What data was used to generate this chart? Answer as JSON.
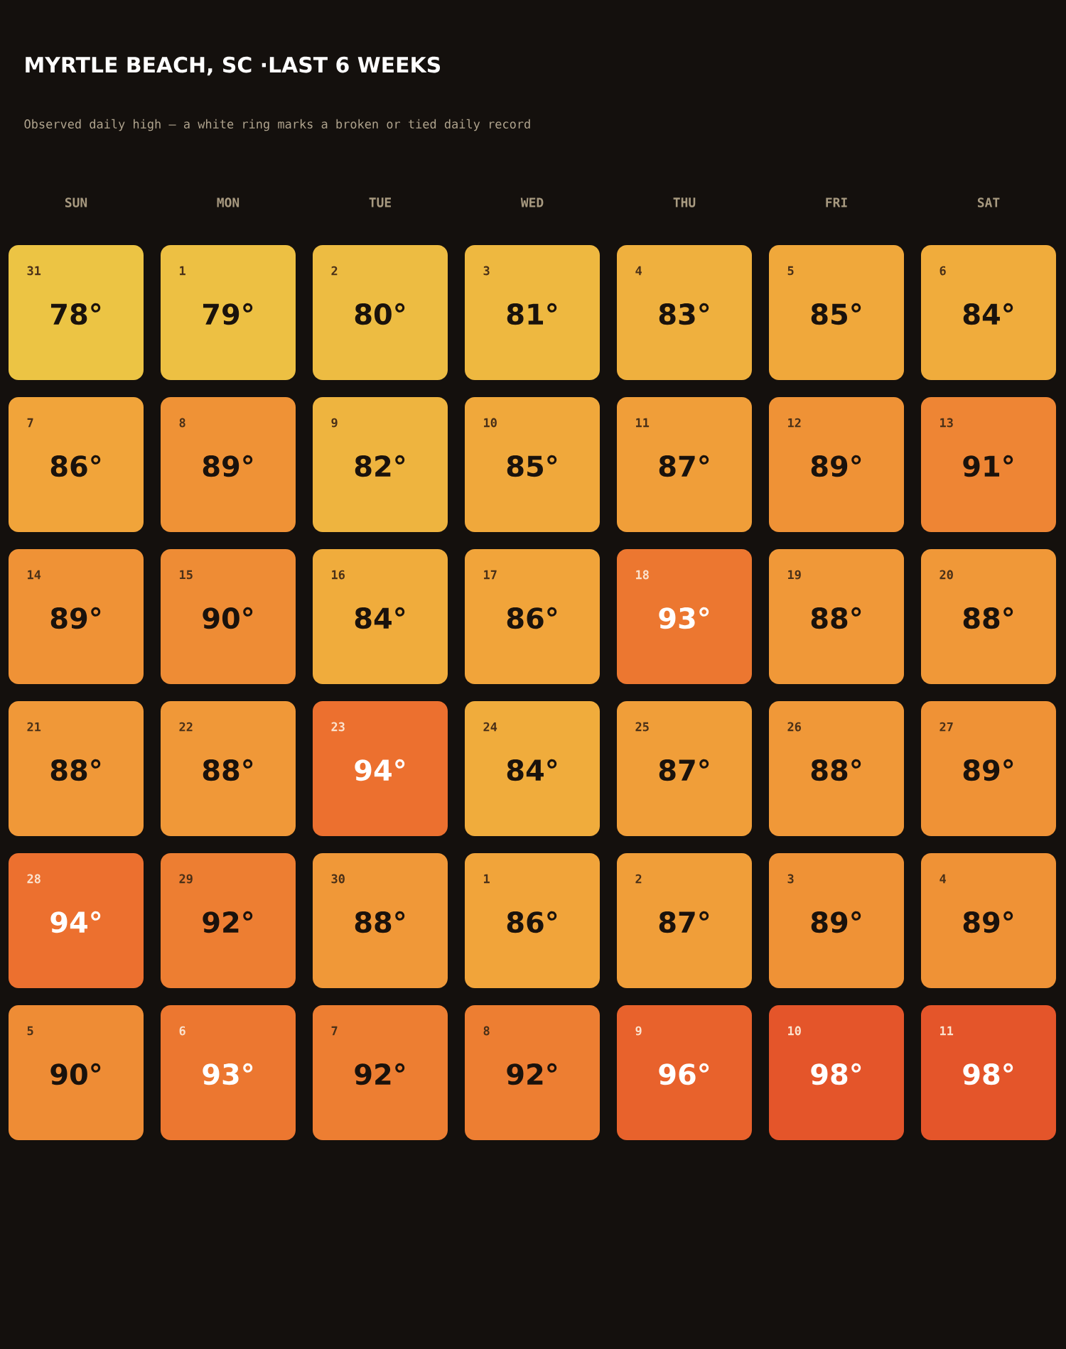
{
  "chart_data": {
    "type": "heatmap",
    "title": "MYRTLE BEACH, SC ·LAST 6 WEEKS",
    "subtitle": "Observed daily high — a white ring marks a broken or tied daily record",
    "categories": [
      "SUN",
      "MON",
      "TUE",
      "WED",
      "THU",
      "FRI",
      "SAT"
    ],
    "y_categories": [
      null,
      null,
      null,
      null,
      null,
      null
    ],
    "cells": [
      [
        78,
        79,
        80,
        81,
        83,
        85,
        84
      ],
      [
        86,
        89,
        82,
        85,
        87,
        89,
        91
      ],
      [
        89,
        90,
        84,
        86,
        93,
        88,
        88
      ],
      [
        88,
        88,
        94,
        84,
        87,
        88,
        89
      ],
      [
        94,
        92,
        88,
        86,
        87,
        89,
        89
      ],
      [
        90,
        93,
        92,
        92,
        96,
        98,
        98
      ]
    ],
    "cell_labels": [
      [
        "78°",
        "79°",
        "80°",
        "81°",
        "83°",
        "85°",
        "84°"
      ],
      [
        "86°",
        "89°",
        "82°",
        "85°",
        "87°",
        "89°",
        "91°"
      ],
      [
        "89°",
        "90°",
        "84°",
        "86°",
        "93°",
        "88°",
        "88°"
      ],
      [
        "88°",
        "88°",
        "94°",
        "84°",
        "87°",
        "88°",
        "89°"
      ],
      [
        "94°",
        "92°",
        "88°",
        "86°",
        "87°",
        "89°",
        "89°"
      ],
      [
        "90°",
        "93°",
        "92°",
        "92°",
        "96°",
        "98°",
        "98°"
      ]
    ],
    "annotations": [
      "31",
      "1",
      "2",
      "3",
      "4",
      "5",
      "6",
      "7",
      "8",
      "9",
      "10",
      "11",
      "12",
      "13",
      "14",
      "15",
      "16",
      "17",
      "18",
      "19",
      "20",
      "21",
      "22",
      "23",
      "24",
      "25",
      "26",
      "27",
      "28",
      "29",
      "30",
      "1",
      "2",
      "3",
      "4",
      "5",
      "6",
      "7",
      "8",
      "9",
      "10",
      "11"
    ]
  }
}
